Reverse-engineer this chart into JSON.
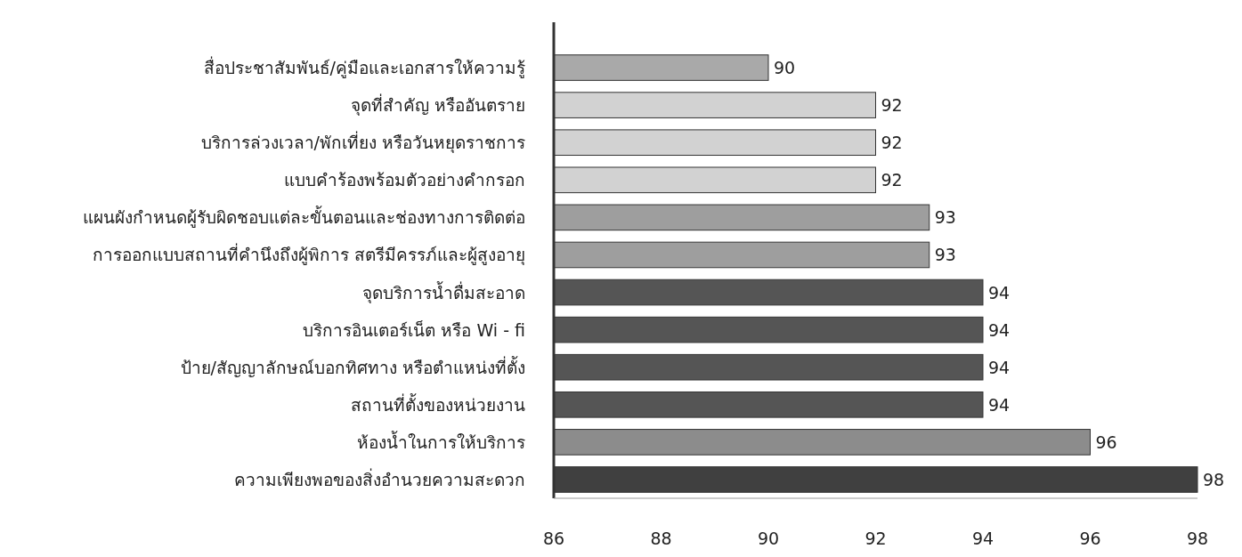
{
  "chart_data": {
    "type": "bar",
    "orientation": "horizontal",
    "categories": [
      "สื่อประชาสัมพันธ์/คู่มือและเอกสารให้ความรู้",
      "จุดที่สำคัญ หรืออันตราย",
      "บริการล่วงเวลา/พักเที่ยง หรือวันหยุดราชการ",
      "แบบคำร้องพร้อมตัวอย่างคำกรอก",
      "แผนผังกำหนดผู้รับผิดชอบแต่ละขั้นตอนและช่องทางการติดต่อ",
      "การออกแบบสถานที่คำนึงถึงผู้พิการ สตรีมีครรภ์และผู้สูงอายุ",
      "จุดบริการน้ำดื่มสะอาด",
      "บริการอินเตอร์เน็ต หรือ Wi - fi",
      "ป้าย/สัญญาลักษณ์บอกทิศทาง หรือตำแหน่งที่ตั้ง",
      "สถานที่ตั้งของหน่วยงาน",
      "ห้องน้ำในการให้บริการ",
      "ความเพียงพอของสิ่งอำนวยความสะดวก"
    ],
    "values": [
      90,
      92,
      92,
      92,
      93,
      93,
      94,
      94,
      94,
      94,
      96,
      98
    ],
    "colors": [
      "#a9a9a9",
      "#d2d2d2",
      "#d2d2d2",
      "#d2d2d2",
      "#9e9e9e",
      "#9e9e9e",
      "#555555",
      "#555555",
      "#555555",
      "#555555",
      "#8c8c8c",
      "#404040"
    ],
    "xlim": [
      86,
      98
    ],
    "xticks": [
      86,
      88,
      90,
      92,
      94,
      96,
      98
    ],
    "data_labels": true
  }
}
